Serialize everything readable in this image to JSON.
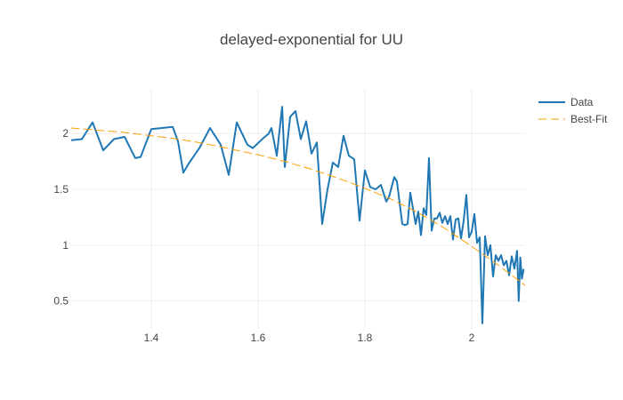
{
  "chart_data": {
    "type": "line",
    "title": "delayed-exponential for UU",
    "xlabel": "",
    "ylabel": "",
    "xlim": [
      1.25,
      2.1
    ],
    "ylim": [
      0.25,
      2.4
    ],
    "x_ticks": [
      1.4,
      1.6,
      1.8,
      2.0
    ],
    "x_tick_labels": [
      "1.4",
      "1.6",
      "1.8",
      "2"
    ],
    "y_ticks": [
      0.5,
      1.0,
      1.5,
      2.0
    ],
    "y_tick_labels": [
      "0.5",
      "1",
      "1.5",
      "2"
    ],
    "grid": true,
    "legend_position": "top-right",
    "series": [
      {
        "name": "Data",
        "style": "solid",
        "color": "#1f77b4",
        "x": [
          1.25,
          1.27,
          1.29,
          1.31,
          1.33,
          1.35,
          1.37,
          1.38,
          1.4,
          1.42,
          1.44,
          1.45,
          1.46,
          1.47,
          1.49,
          1.51,
          1.53,
          1.545,
          1.56,
          1.58,
          1.59,
          1.61,
          1.62,
          1.625,
          1.635,
          1.645,
          1.65,
          1.66,
          1.67,
          1.68,
          1.69,
          1.7,
          1.71,
          1.72,
          1.73,
          1.74,
          1.75,
          1.76,
          1.77,
          1.78,
          1.79,
          1.8,
          1.81,
          1.82,
          1.83,
          1.84,
          1.845,
          1.855,
          1.86,
          1.87,
          1.875,
          1.88,
          1.885,
          1.89,
          1.895,
          1.9,
          1.905,
          1.91,
          1.915,
          1.92,
          1.925,
          1.93,
          1.935,
          1.94,
          1.945,
          1.95,
          1.955,
          1.96,
          1.965,
          1.97,
          1.975,
          1.98,
          1.985,
          1.99,
          1.995,
          2.0,
          2.005,
          2.01,
          2.015,
          2.02,
          2.025,
          2.03,
          2.035,
          2.04,
          2.045,
          2.05,
          2.055,
          2.06,
          2.065,
          2.07,
          2.075,
          2.08,
          2.085,
          2.088,
          2.091,
          2.094,
          2.097
        ],
        "y": [
          1.94,
          1.95,
          2.1,
          1.85,
          1.95,
          1.97,
          1.78,
          1.79,
          2.04,
          2.05,
          2.06,
          1.93,
          1.65,
          1.73,
          1.87,
          2.05,
          1.9,
          1.63,
          2.1,
          1.9,
          1.87,
          1.96,
          2.0,
          2.05,
          1.8,
          2.24,
          1.7,
          2.15,
          2.2,
          1.95,
          2.11,
          1.82,
          1.92,
          1.19,
          1.5,
          1.74,
          1.7,
          1.98,
          1.8,
          1.77,
          1.22,
          1.67,
          1.52,
          1.5,
          1.54,
          1.39,
          1.43,
          1.61,
          1.57,
          1.19,
          1.18,
          1.19,
          1.47,
          1.33,
          1.19,
          1.3,
          1.09,
          1.33,
          1.27,
          1.78,
          1.13,
          1.24,
          1.24,
          1.29,
          1.2,
          1.26,
          1.19,
          1.26,
          1.05,
          1.23,
          1.24,
          1.06,
          1.22,
          1.45,
          1.07,
          1.12,
          1.28,
          1.02,
          1.07,
          0.3,
          1.08,
          0.91,
          1.0,
          0.72,
          0.91,
          0.86,
          0.91,
          0.82,
          0.86,
          0.73,
          0.9,
          0.79,
          0.95,
          0.5,
          0.89,
          0.7,
          0.78
        ]
      },
      {
        "name": "Best-Fit",
        "style": "dashed",
        "color": "#ff9f00",
        "x": [
          1.25,
          1.3,
          1.35,
          1.4,
          1.45,
          1.5,
          1.55,
          1.6,
          1.65,
          1.7,
          1.75,
          1.8,
          1.85,
          1.9,
          1.95,
          2.0,
          2.05,
          2.1
        ],
        "y": [
          2.05,
          2.03,
          2.01,
          1.98,
          1.95,
          1.91,
          1.86,
          1.81,
          1.75,
          1.68,
          1.6,
          1.51,
          1.41,
          1.29,
          1.15,
          0.99,
          0.82,
          0.64
        ]
      }
    ]
  }
}
